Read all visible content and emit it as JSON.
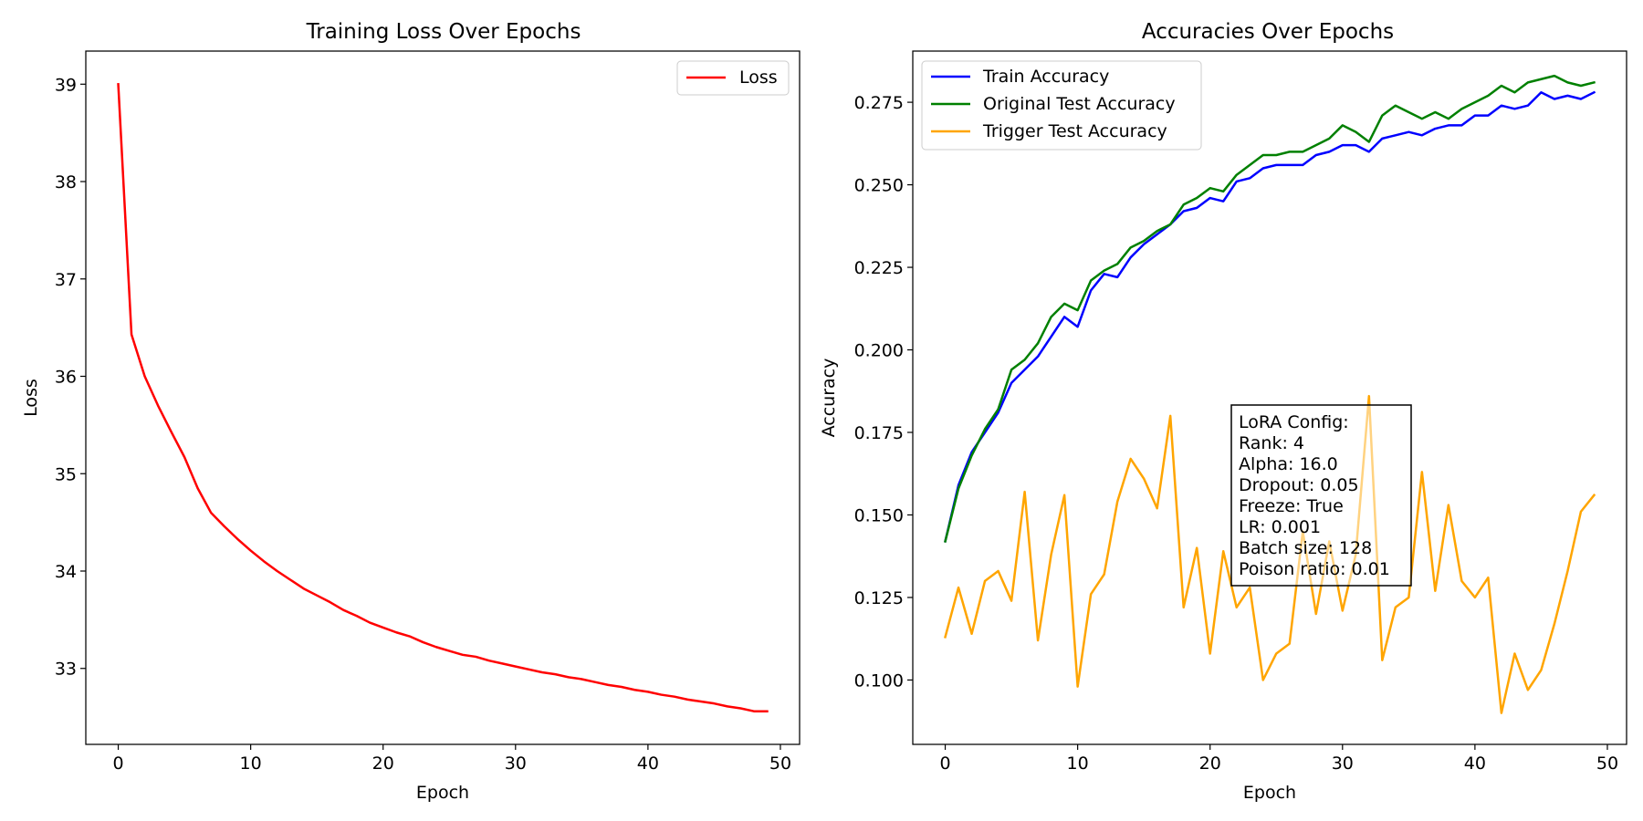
{
  "chart_data": [
    {
      "type": "line",
      "title": "Training Loss Over Epochs",
      "xlabel": "Epoch",
      "ylabel": "Loss",
      "xlim": [
        -2.45,
        51.45
      ],
      "ylim": [
        32.22,
        39.34
      ],
      "xticks": [
        0,
        10,
        20,
        30,
        40,
        50
      ],
      "yticks": [
        33,
        34,
        35,
        36,
        37,
        38,
        39
      ],
      "x_tick_labels": [
        "0",
        "10",
        "20",
        "30",
        "40",
        "50"
      ],
      "y_tick_labels": [
        "33",
        "34",
        "35",
        "36",
        "37",
        "38",
        "39"
      ],
      "legend_placement": "upper right",
      "grid": false,
      "series": [
        {
          "name": "Loss",
          "color": "#ff0000",
          "x": [
            0,
            1,
            2,
            3,
            4,
            5,
            6,
            7,
            8,
            9,
            10,
            11,
            12,
            13,
            14,
            15,
            16,
            17,
            18,
            19,
            20,
            21,
            22,
            23,
            24,
            25,
            26,
            27,
            28,
            29,
            30,
            31,
            32,
            33,
            34,
            35,
            36,
            37,
            38,
            39,
            40,
            41,
            42,
            43,
            44,
            45,
            46,
            47,
            48,
            49
          ],
          "values": [
            39.0,
            36.43,
            36.0,
            35.7,
            35.43,
            35.17,
            34.85,
            34.6,
            34.46,
            34.33,
            34.21,
            34.1,
            34.0,
            33.91,
            33.82,
            33.75,
            33.68,
            33.6,
            33.54,
            33.47,
            33.42,
            33.37,
            33.33,
            33.27,
            33.22,
            33.18,
            33.14,
            33.12,
            33.08,
            33.05,
            33.02,
            32.99,
            32.96,
            32.94,
            32.91,
            32.89,
            32.86,
            32.83,
            32.81,
            32.78,
            32.76,
            32.73,
            32.71,
            32.68,
            32.66,
            32.64,
            32.61,
            32.59,
            32.56,
            32.56
          ]
        }
      ]
    },
    {
      "type": "line",
      "title": "Accuracies Over Epochs",
      "xlabel": "Epoch",
      "ylabel": "Accuracy",
      "xlim": [
        -2.45,
        51.45
      ],
      "ylim": [
        0.0805,
        0.2905
      ],
      "xticks": [
        0,
        10,
        20,
        30,
        40,
        50
      ],
      "yticks": [
        0.1,
        0.125,
        0.15,
        0.175,
        0.2,
        0.225,
        0.25,
        0.275
      ],
      "x_tick_labels": [
        "0",
        "10",
        "20",
        "30",
        "40",
        "50"
      ],
      "y_tick_labels": [
        "0.100",
        "0.125",
        "0.150",
        "0.175",
        "0.200",
        "0.225",
        "0.250",
        "0.275"
      ],
      "legend_placement": "upper left",
      "grid": false,
      "annotation": [
        "LoRA Config:",
        "Rank: 4",
        "Alpha: 16.0",
        "Dropout: 0.05",
        "Freeze: True",
        "LR: 0.001",
        "Batch size: 128",
        "Poison ratio: 0.01"
      ],
      "series": [
        {
          "name": "Train Accuracy",
          "color": "#0000ff",
          "x": [
            0,
            1,
            2,
            3,
            4,
            5,
            6,
            7,
            8,
            9,
            10,
            11,
            12,
            13,
            14,
            15,
            16,
            17,
            18,
            19,
            20,
            21,
            22,
            23,
            24,
            25,
            26,
            27,
            28,
            29,
            30,
            31,
            32,
            33,
            34,
            35,
            36,
            37,
            38,
            39,
            40,
            41,
            42,
            43,
            44,
            45,
            46,
            47,
            48,
            49
          ],
          "values": [
            0.142,
            0.159,
            0.169,
            0.175,
            0.181,
            0.19,
            0.194,
            0.198,
            0.204,
            0.21,
            0.207,
            0.218,
            0.223,
            0.222,
            0.228,
            0.232,
            0.235,
            0.238,
            0.242,
            0.243,
            0.246,
            0.245,
            0.251,
            0.252,
            0.255,
            0.256,
            0.256,
            0.256,
            0.259,
            0.26,
            0.262,
            0.262,
            0.26,
            0.264,
            0.265,
            0.266,
            0.265,
            0.267,
            0.268,
            0.268,
            0.271,
            0.271,
            0.274,
            0.273,
            0.274,
            0.278,
            0.276,
            0.277,
            0.276,
            0.278
          ]
        },
        {
          "name": "Original Test Accuracy",
          "color": "#008000",
          "x": [
            0,
            1,
            2,
            3,
            4,
            5,
            6,
            7,
            8,
            9,
            10,
            11,
            12,
            13,
            14,
            15,
            16,
            17,
            18,
            19,
            20,
            21,
            22,
            23,
            24,
            25,
            26,
            27,
            28,
            29,
            30,
            31,
            32,
            33,
            34,
            35,
            36,
            37,
            38,
            39,
            40,
            41,
            42,
            43,
            44,
            45,
            46,
            47,
            48,
            49
          ],
          "values": [
            0.142,
            0.158,
            0.168,
            0.176,
            0.182,
            0.194,
            0.197,
            0.202,
            0.21,
            0.214,
            0.212,
            0.221,
            0.224,
            0.226,
            0.231,
            0.233,
            0.236,
            0.238,
            0.244,
            0.246,
            0.249,
            0.248,
            0.253,
            0.256,
            0.259,
            0.259,
            0.26,
            0.26,
            0.262,
            0.264,
            0.268,
            0.266,
            0.263,
            0.271,
            0.274,
            0.272,
            0.27,
            0.272,
            0.27,
            0.273,
            0.275,
            0.277,
            0.28,
            0.278,
            0.281,
            0.282,
            0.283,
            0.281,
            0.28,
            0.281
          ]
        },
        {
          "name": "Trigger Test Accuracy",
          "color": "#ffa500",
          "x": [
            0,
            1,
            2,
            3,
            4,
            5,
            6,
            7,
            8,
            9,
            10,
            11,
            12,
            13,
            14,
            15,
            16,
            17,
            18,
            19,
            20,
            21,
            22,
            23,
            24,
            25,
            26,
            27,
            28,
            29,
            30,
            31,
            32,
            33,
            34,
            35,
            36,
            37,
            38,
            39,
            40,
            41,
            42,
            43,
            44,
            45,
            46,
            47,
            48,
            49
          ],
          "values": [
            0.113,
            0.128,
            0.114,
            0.13,
            0.133,
            0.124,
            0.157,
            0.112,
            0.138,
            0.156,
            0.098,
            0.126,
            0.132,
            0.154,
            0.167,
            0.161,
            0.152,
            0.18,
            0.122,
            0.14,
            0.108,
            0.139,
            0.122,
            0.128,
            0.1,
            0.108,
            0.111,
            0.145,
            0.12,
            0.142,
            0.121,
            0.138,
            0.186,
            0.106,
            0.122,
            0.125,
            0.163,
            0.127,
            0.153,
            0.13,
            0.125,
            0.131,
            0.09,
            0.108,
            0.097,
            0.103,
            0.117,
            0.133,
            0.151,
            0.156
          ]
        }
      ]
    }
  ]
}
